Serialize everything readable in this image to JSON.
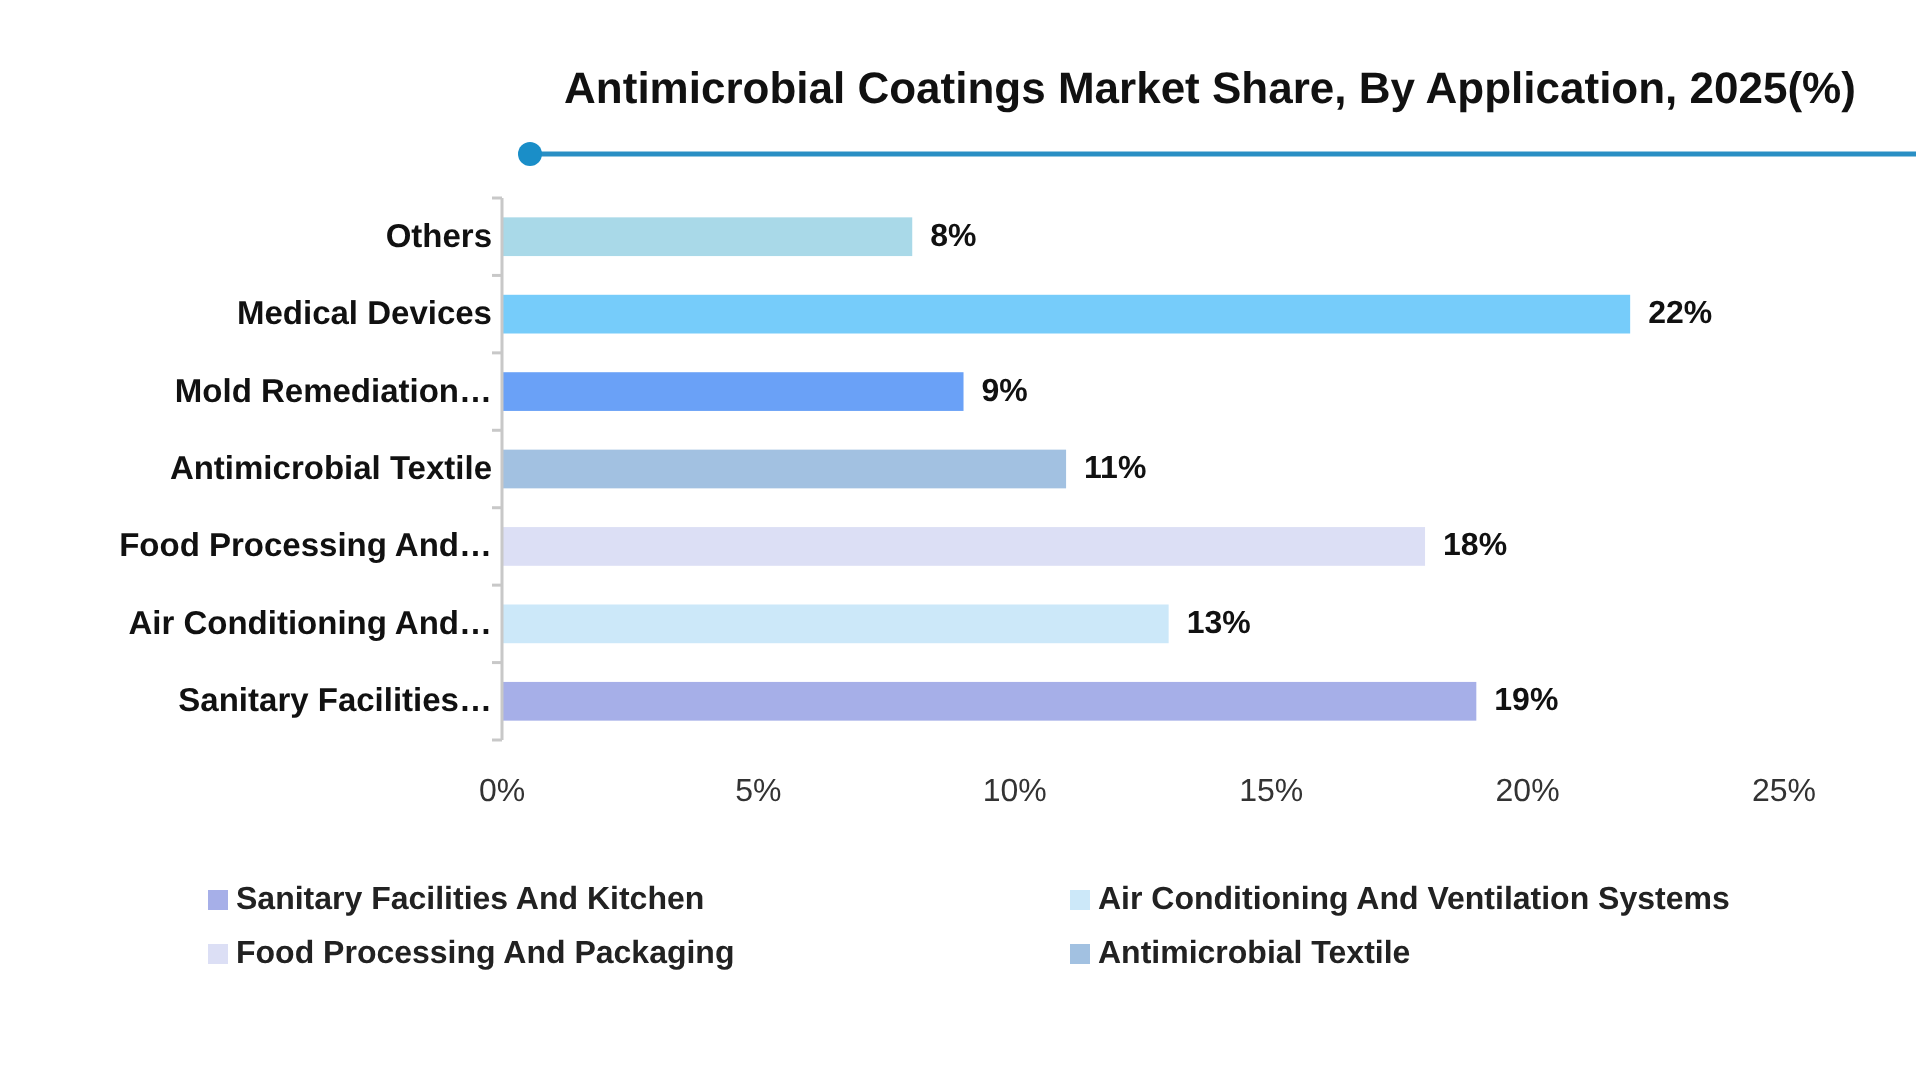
{
  "chart_data": {
    "type": "bar",
    "orientation": "horizontal",
    "stacked": true,
    "title": "Antimicrobial Coatings Market Share, By Application, 2025(%)",
    "categories": [
      "Others",
      "Medical Devices",
      "Mold Remediation…",
      "Antimicrobial Textile",
      "Food Processing And…",
      "Air Conditioning And…",
      "Sanitary Facilities…"
    ],
    "series": [
      {
        "name": "Sanitary Facilities And Kitchen",
        "color": "#a6afe8",
        "values": [
          null,
          null,
          null,
          null,
          null,
          null,
          19
        ],
        "value_labels": [
          null,
          null,
          null,
          null,
          null,
          null,
          "19%"
        ]
      },
      {
        "name": "Air Conditioning And Ventilation Systems",
        "color": "#cce8f9",
        "values": [
          null,
          null,
          null,
          null,
          null,
          13,
          null
        ],
        "value_labels": [
          null,
          null,
          null,
          null,
          null,
          "13%",
          null
        ]
      },
      {
        "name": "Food Processing And Packaging",
        "color": "#dcdff5",
        "values": [
          null,
          null,
          null,
          null,
          18,
          null,
          null
        ],
        "value_labels": [
          null,
          null,
          null,
          null,
          "18%",
          null,
          null
        ]
      },
      {
        "name": "Antimicrobial Textile",
        "color": "#a2c1e1",
        "values": [
          null,
          null,
          null,
          11,
          null,
          null,
          null
        ],
        "value_labels": [
          null,
          null,
          null,
          "11%",
          null,
          null,
          null
        ]
      },
      {
        "color": "#6aa1f7",
        "values": [
          null,
          null,
          9,
          null,
          null,
          null,
          null
        ],
        "value_labels": [
          null,
          null,
          "9%",
          null,
          null,
          null,
          null
        ]
      },
      {
        "color": "#76ccfa",
        "values": [
          null,
          22,
          null,
          null,
          null,
          null,
          null
        ],
        "value_labels": [
          null,
          "22%",
          null,
          null,
          null,
          null,
          null
        ]
      },
      {
        "color": "#a9d9e8",
        "values": [
          8,
          null,
          null,
          null,
          null,
          null,
          null
        ],
        "value_labels": [
          "8%",
          null,
          null,
          null,
          null,
          null,
          null
        ]
      }
    ],
    "xlim": [
      0,
      25
    ],
    "xticks": [
      {
        "value": 0,
        "label": "0%"
      },
      {
        "value": 5,
        "label": "5%"
      },
      {
        "value": 10,
        "label": "10%"
      },
      {
        "value": 15,
        "label": "15%"
      },
      {
        "value": 20,
        "label": "20%"
      },
      {
        "value": 25,
        "label": "25%"
      }
    ],
    "legend": "bottom"
  }
}
